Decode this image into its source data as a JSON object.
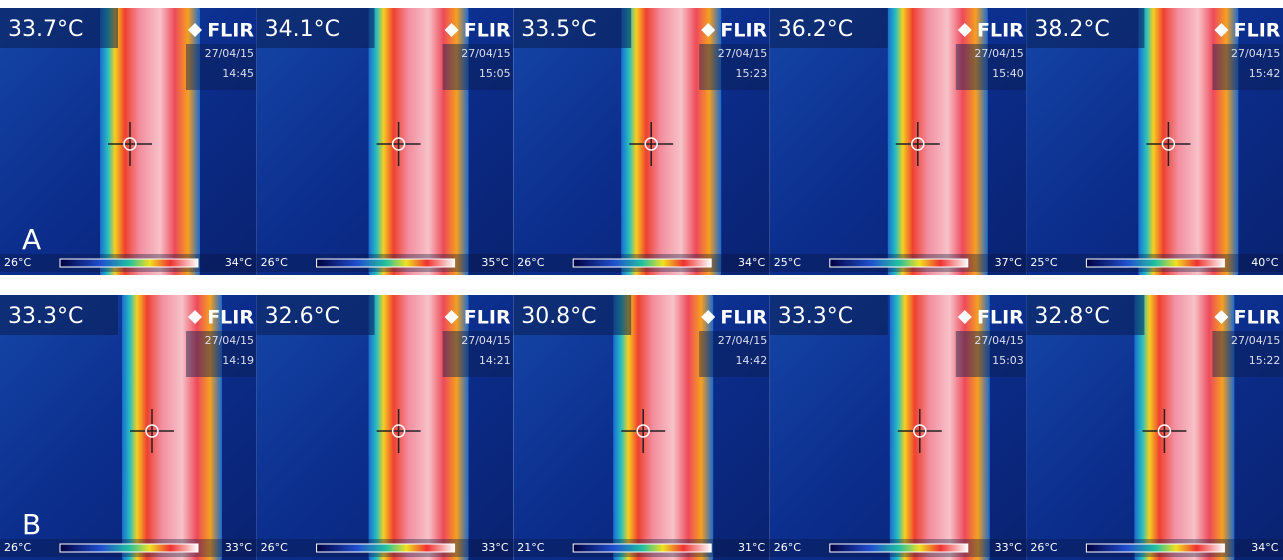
{
  "rows": [
    {
      "label": "A",
      "panels": [
        {
          "reading": "33.7°C",
          "brand": "FLIR",
          "date": "27/04/15",
          "time": "14:45",
          "scale_min": "26°C",
          "scale_max": "34°C"
        },
        {
          "reading": "34.1°C",
          "brand": "FLIR",
          "date": "27/04/15",
          "time": "15:05",
          "scale_min": "26°C",
          "scale_max": "35°C"
        },
        {
          "reading": "33.5°C",
          "brand": "FLIR",
          "date": "27/04/15",
          "time": "15:23",
          "scale_min": "26°C",
          "scale_max": "34°C"
        },
        {
          "reading": "36.2°C",
          "brand": "FLIR",
          "date": "27/04/15",
          "time": "15:40",
          "scale_min": "25°C",
          "scale_max": "37°C"
        },
        {
          "reading": "38.2°C",
          "brand": "FLIR",
          "date": "27/04/15",
          "time": "15:42",
          "scale_min": "25°C",
          "scale_max": "40°C"
        }
      ]
    },
    {
      "label": "B",
      "panels": [
        {
          "reading": "33.3°C",
          "brand": "FLIR",
          "date": "27/04/15",
          "time": "14:19",
          "scale_min": "26°C",
          "scale_max": "33°C"
        },
        {
          "reading": "32.6°C",
          "brand": "FLIR",
          "date": "27/04/15",
          "time": "14:21",
          "scale_min": "26°C",
          "scale_max": "33°C"
        },
        {
          "reading": "30.8°C",
          "brand": "FLIR",
          "date": "27/04/15",
          "time": "14:42",
          "scale_min": "21°C",
          "scale_max": "31°C"
        },
        {
          "reading": "33.3°C",
          "brand": "FLIR",
          "date": "27/04/15",
          "time": "15:03",
          "scale_min": "26°C",
          "scale_max": "33°C"
        },
        {
          "reading": "32.8°C",
          "brand": "FLIR",
          "date": "27/04/15",
          "time": "15:22",
          "scale_min": "26°C",
          "scale_max": "34°C"
        }
      ]
    }
  ]
}
